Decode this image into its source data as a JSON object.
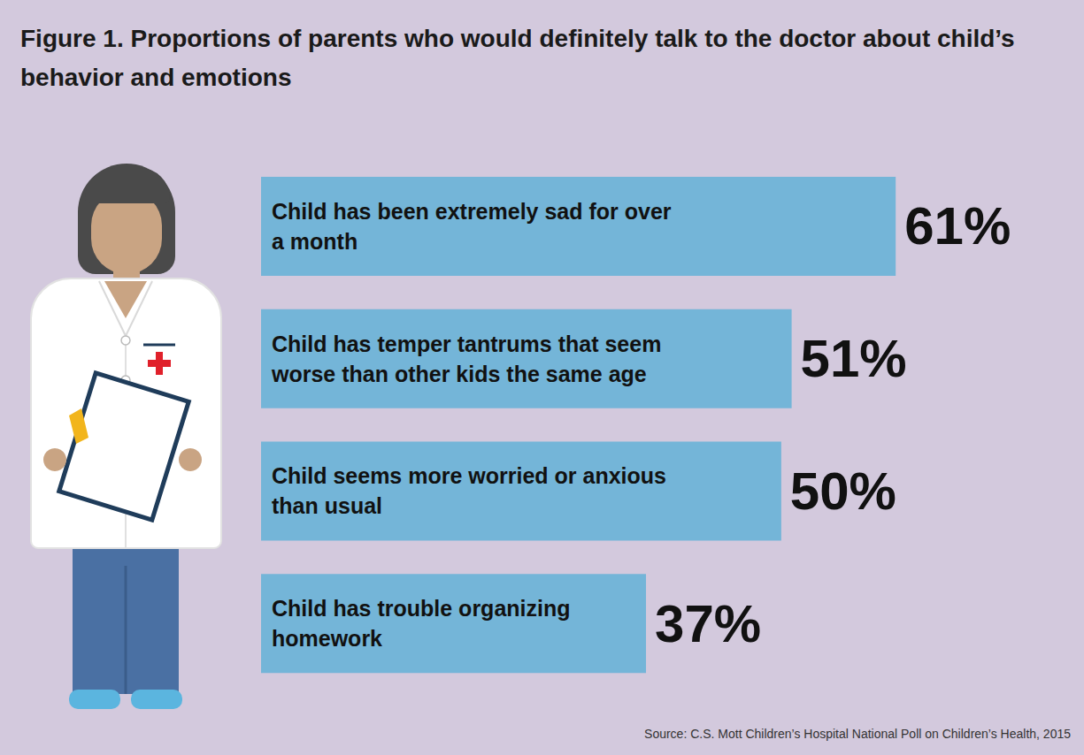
{
  "chart_data": {
    "type": "bar",
    "orientation": "horizontal",
    "title": "Figure 1. Proportions of parents who would definitely talk to the doctor about child’s behavior and emotions",
    "source": "Source: C.S. Mott Children’s Hospital National Poll on Children’s Health, 2015",
    "categories": [
      "Child has been extremely sad for over a month",
      "Child has temper tantrums that seem worse than other kids the same age",
      "Child seems more worried or anxious than usual",
      "Child has trouble organizing homework"
    ],
    "values": [
      61,
      51,
      50,
      37
    ],
    "value_labels": [
      "61%",
      "51%",
      "50%",
      "37%"
    ],
    "data_labels": true,
    "color": "#74b5d8",
    "xlim": [
      0,
      70
    ],
    "tick_labels": false,
    "grid": false
  }
}
